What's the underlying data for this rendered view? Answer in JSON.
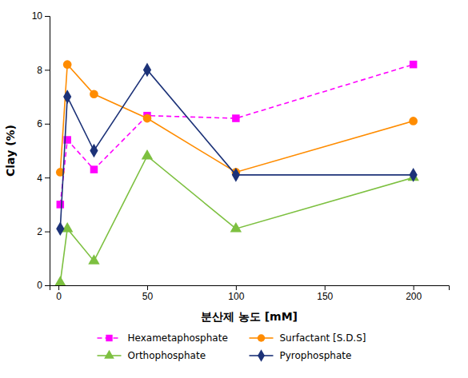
{
  "chart_data": {
    "type": "line",
    "xlabel": "분산제 농도 [mM]",
    "ylabel": "Clay (%)",
    "x": [
      1,
      5,
      20,
      50,
      100,
      200
    ],
    "xlim": [
      -5,
      220
    ],
    "ylim": [
      0,
      10
    ],
    "xticks": [
      0,
      50,
      100,
      150,
      200
    ],
    "yticks": [
      0,
      2,
      4,
      6,
      8,
      10
    ],
    "grid": false,
    "legend": "bottom",
    "series": [
      {
        "name": "Hexametaphosphate",
        "color": "#ff00ff",
        "marker": "square",
        "line_style": "dashed",
        "values": [
          3.0,
          5.4,
          4.3,
          6.3,
          6.2,
          8.2
        ]
      },
      {
        "name": "Surfactant [S.D.S]",
        "color": "#ff8c00",
        "marker": "circle",
        "line_style": "solid",
        "values": [
          4.2,
          8.2,
          7.1,
          6.2,
          4.2,
          6.1
        ]
      },
      {
        "name": "Orthophosphate",
        "color": "#7dc040",
        "marker": "triangle",
        "line_style": "solid",
        "values": [
          0.1,
          2.1,
          0.9,
          4.8,
          2.1,
          4.0
        ]
      },
      {
        "name": "Pyrophosphate",
        "color": "#1c3278",
        "marker": "diamond",
        "line_style": "solid",
        "values": [
          2.1,
          7.0,
          5.0,
          8.0,
          4.1,
          4.1
        ]
      }
    ]
  }
}
